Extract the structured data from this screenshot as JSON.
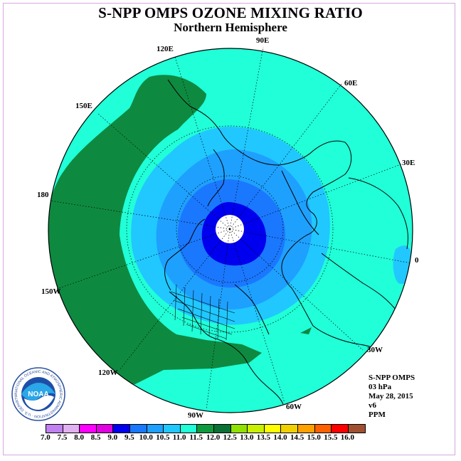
{
  "title": "S-NPP OMPS OZONE MIXING RATIO",
  "subtitle": "Northern Hemisphere",
  "longitude_labels": [
    "90E",
    "60E",
    "30E",
    "0",
    "30W",
    "60W",
    "90W",
    "120W",
    "150W",
    "180",
    "150E",
    "120E"
  ],
  "info": {
    "instrument": "S-NPP OMPS",
    "level": "03 hPa",
    "date": "May 28, 2015",
    "version": "v6",
    "units": "PPM"
  },
  "colorbar": {
    "tick_labels": [
      "7.0",
      "7.5",
      "8.0",
      "8.5",
      "9.0",
      "9.5",
      "10.0",
      "10.5",
      "11.0",
      "11.5",
      "12.0",
      "12.5",
      "13.0",
      "13.5",
      "14.0",
      "14.5",
      "15.0",
      "15.5",
      "16.0"
    ],
    "colors": [
      "#c080f0",
      "#e0b0f0",
      "#ff00ff",
      "#e000e0",
      "#0000ee",
      "#1a78ff",
      "#1ea0ff",
      "#20c8ff",
      "#20ffd8",
      "#0e9a3c",
      "#0a7034",
      "#90e000",
      "#c8f000",
      "#ffff00",
      "#f0d000",
      "#ffa000",
      "#ff6000",
      "#ff0000",
      "#a05030"
    ]
  },
  "map": {
    "projection": "north polar stereographic",
    "fill_colors": {
      "ocean_band": "#20ffd8",
      "green_band": "#0e8a40",
      "ring_10_5": "#20c8ff",
      "ring_10_0": "#1ea0ff",
      "ring_9_5": "#1a78ff",
      "core_9_0": "#0000ee",
      "pole_nodata": "#ffffff"
    }
  },
  "logo": {
    "name": "noaa-logo",
    "text": "NOAA",
    "ring_text": "NATIONAL OCEANIC AND ATMOSPHERIC ADMINISTRATION · U.S. DEPARTMENT OF COMMERCE"
  }
}
